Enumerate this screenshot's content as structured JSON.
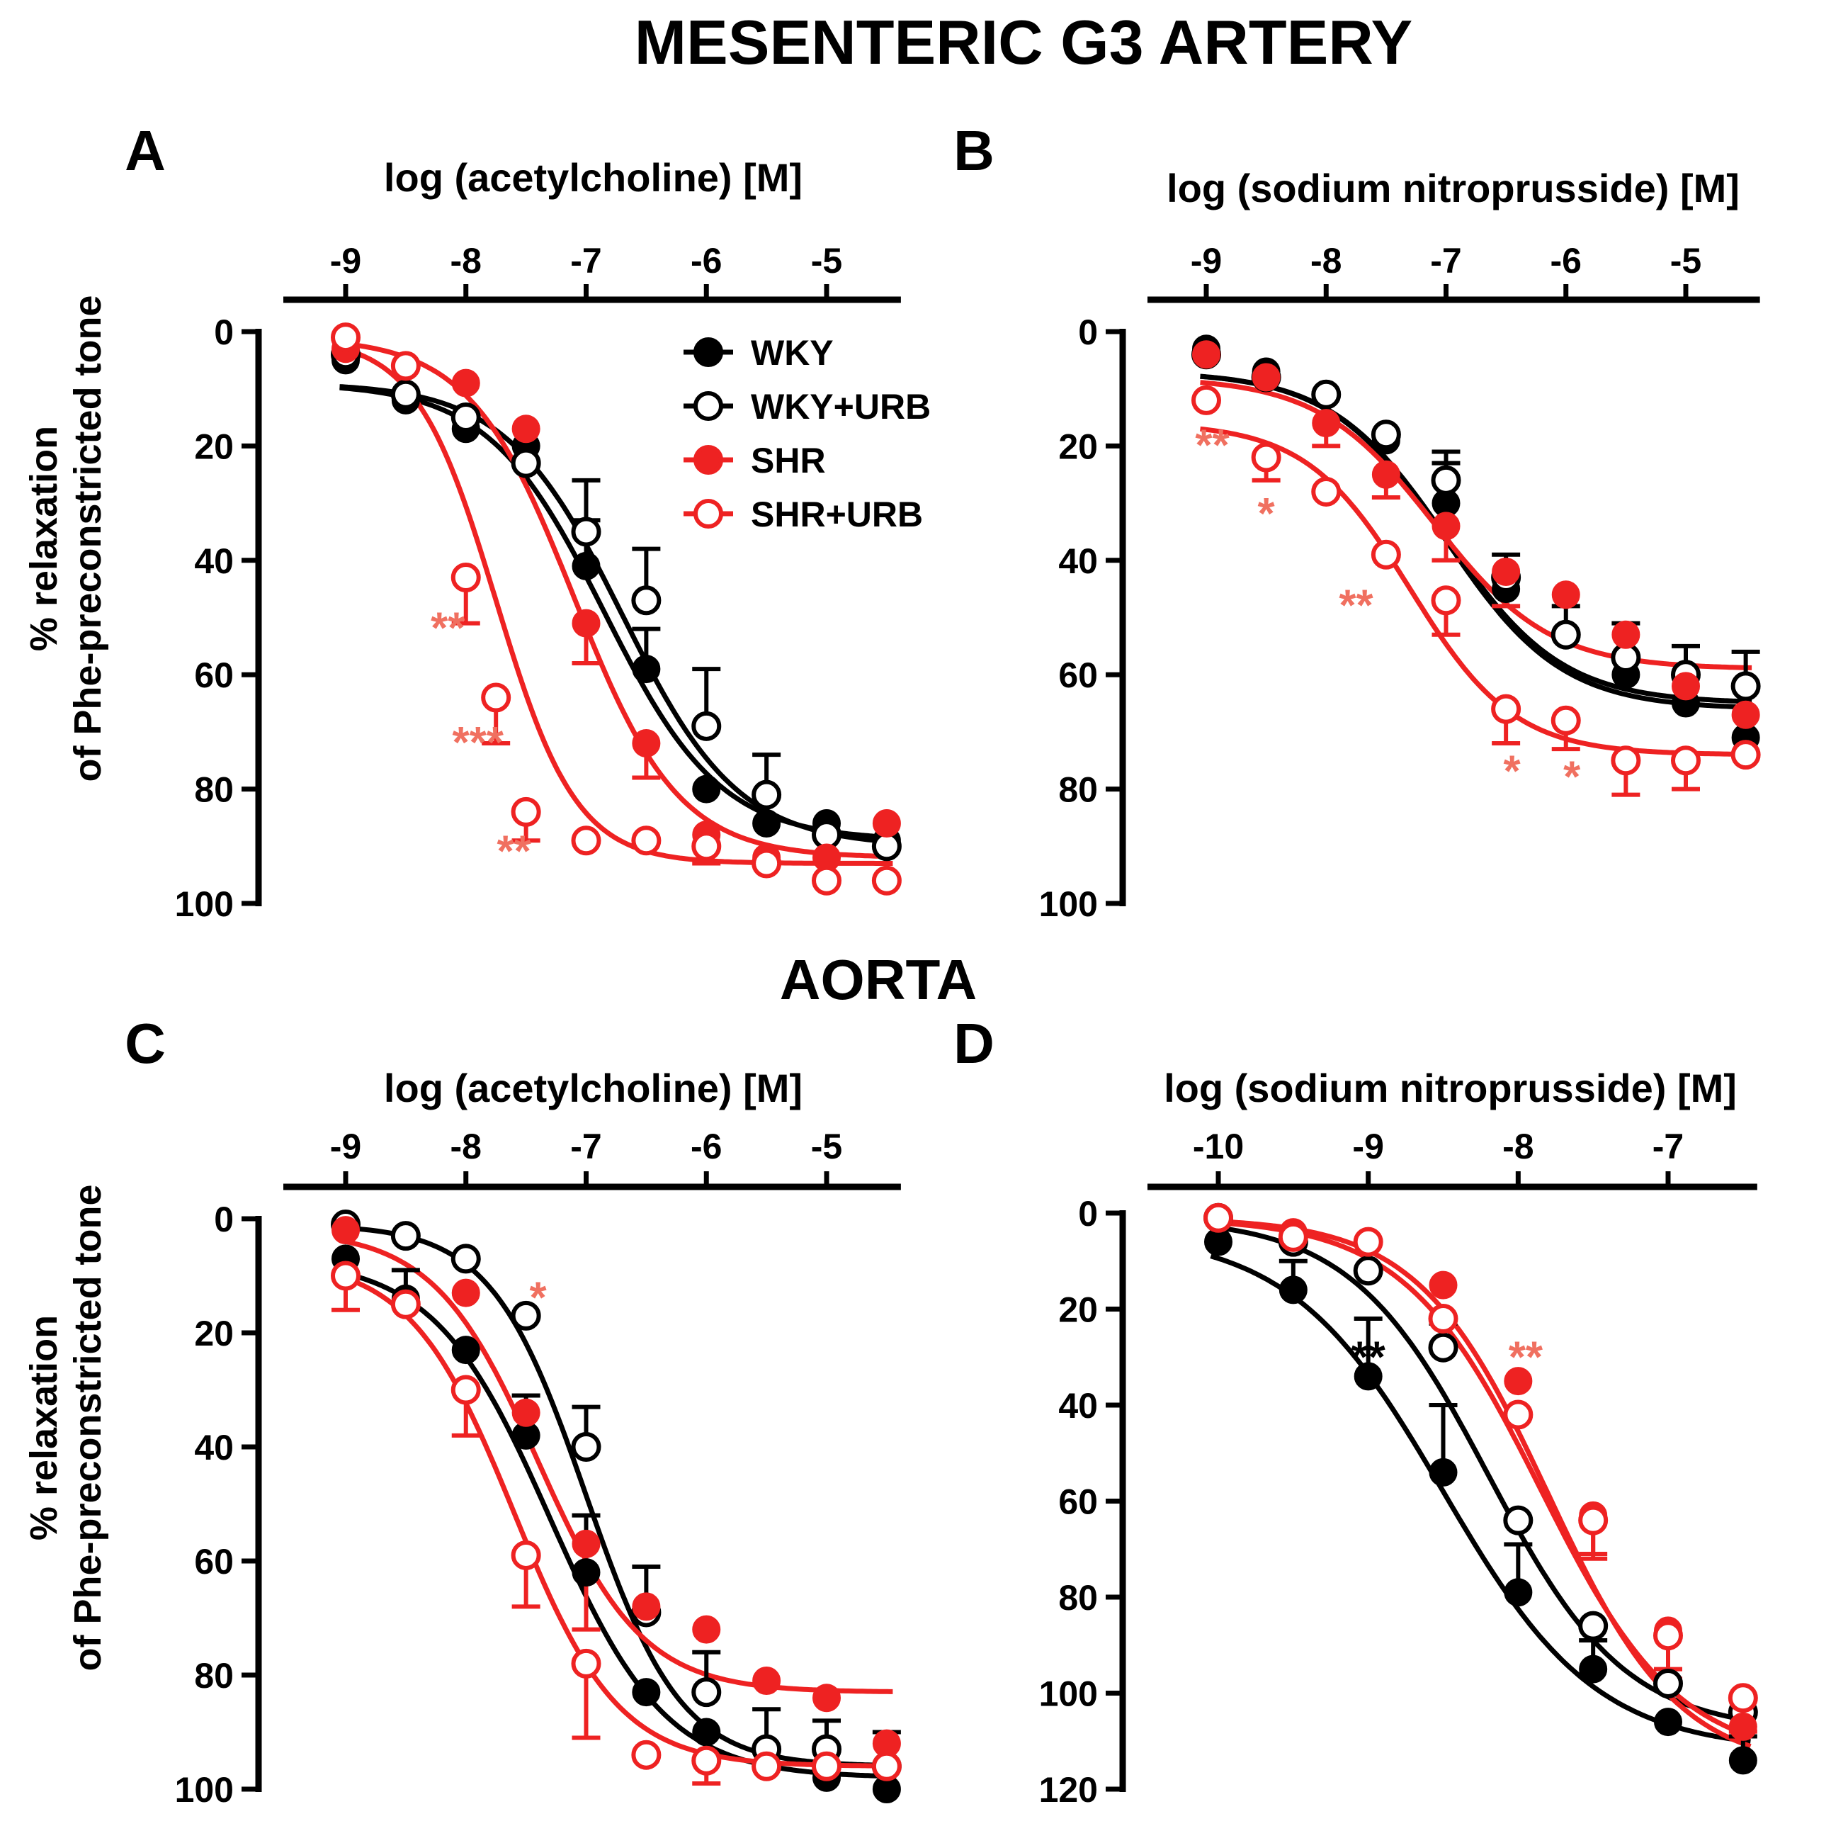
{
  "figure": {
    "title_top": "MESENTERIC G3 ARTERY",
    "title_mid": "AORTA",
    "ylabel_line1": "% relaxation",
    "ylabel_line2": "of Phe-preconstricted tone",
    "legend": [
      {
        "label": "WKY",
        "series": "WKY"
      },
      {
        "label": "WKY+URB",
        "series": "WKY+URB"
      },
      {
        "label": "SHR",
        "series": "SHR"
      },
      {
        "label": "SHR+URB",
        "series": "SHR+URB"
      }
    ]
  },
  "colors": {
    "black": "#000000",
    "red": "#ee2222",
    "star_red": "#f07060"
  },
  "chart_data": [
    {
      "panel": "A",
      "type": "scatter",
      "title": "log (acetylcholine) [M]",
      "xlabel": "log (acetylcholine) [M]",
      "ylabel": "% relaxation of Phe-preconstricted tone",
      "xlim": [
        -9.5,
        -4.5
      ],
      "ylim": [
        0,
        100
      ],
      "y_inverted": true,
      "xticks": [
        -9,
        -8,
        -7,
        -6,
        -5
      ],
      "yticks": [
        0,
        20,
        40,
        60,
        80,
        100
      ],
      "series": [
        {
          "name": "WKY",
          "color": "#000000",
          "filled": true,
          "x": [
            -9,
            -8.5,
            -8,
            -7.5,
            -7,
            -6.5,
            -6,
            -5.5,
            -5,
            -4.5
          ],
          "y": [
            5,
            12,
            17,
            20,
            41,
            59,
            80,
            86,
            86,
            89
          ],
          "err": [
            0,
            0,
            0,
            0,
            8,
            7,
            0,
            0,
            0,
            0
          ],
          "fit": {
            "bottom": 9,
            "top": 89,
            "logec50": -6.85,
            "hill": 0.9
          }
        },
        {
          "name": "WKY+URB",
          "color": "#000000",
          "filled": false,
          "x": [
            -9,
            -8.5,
            -8,
            -7.5,
            -7,
            -6.5,
            -6,
            -5.5,
            -5,
            -4.5
          ],
          "y": [
            4,
            11,
            15,
            23,
            35,
            47,
            69,
            81,
            88,
            90
          ],
          "err": [
            0,
            0,
            0,
            0,
            9,
            9,
            10,
            7,
            0,
            0
          ],
          "fit": {
            "bottom": 9,
            "top": 90,
            "logec50": -6.7,
            "hill": 0.9
          }
        },
        {
          "name": "SHR",
          "color": "#ee2222",
          "filled": true,
          "x": [
            -9,
            -8.5,
            -8,
            -7.5,
            -7,
            -6.5,
            -6,
            -5.5,
            -5,
            -4.5
          ],
          "y": [
            3,
            6,
            9,
            17,
            51,
            72,
            88,
            92,
            92,
            86
          ],
          "err": [
            0,
            0,
            0,
            0,
            7,
            6,
            5,
            0,
            0,
            0
          ],
          "fit": {
            "bottom": 1,
            "top": 92,
            "logec50": -7.1,
            "hill": 1.0
          }
        },
        {
          "name": "SHR+URB",
          "color": "#ee2222",
          "filled": false,
          "x": [
            -9,
            -8.5,
            -8,
            -7.75,
            -7.5,
            -7,
            -6.5,
            -6,
            -5.5,
            -5,
            -4.5
          ],
          "y": [
            1,
            6,
            43,
            64,
            84,
            89,
            89,
            90,
            93,
            96,
            96
          ],
          "err": [
            0,
            0,
            8,
            8,
            5,
            0,
            0,
            0,
            0,
            0,
            0
          ],
          "fit": {
            "bottom": 1,
            "top": 93,
            "logec50": -7.75,
            "hill": 1.3
          }
        }
      ],
      "annotations": [
        {
          "text": "**",
          "x": -8.15,
          "y": 51
        },
        {
          "text": "***",
          "x": -7.9,
          "y": 71
        },
        {
          "text": "**",
          "x": -7.6,
          "y": 90
        }
      ]
    },
    {
      "panel": "B",
      "type": "scatter",
      "title": "log (sodium nitroprusside) [M]",
      "xlabel": "log (sodium nitroprusside) [M]",
      "ylabel": "% relaxation of Phe-preconstricted tone",
      "xlim": [
        -9.5,
        -4.5
      ],
      "ylim": [
        0,
        100
      ],
      "y_inverted": true,
      "xticks": [
        -9,
        -8,
        -7,
        -6,
        -5
      ],
      "yticks": [
        0,
        20,
        40,
        60,
        80,
        100
      ],
      "series": [
        {
          "name": "WKY",
          "color": "#000000",
          "filled": true,
          "x": [
            -9,
            -8.5,
            -8,
            -7.5,
            -7,
            -6.5,
            -6,
            -5.5,
            -5,
            -4.5
          ],
          "y": [
            3,
            7,
            11,
            19,
            30,
            45,
            53,
            60,
            65,
            71
          ],
          "err": [
            0,
            0,
            0,
            0,
            7,
            0,
            0,
            0,
            0,
            0
          ],
          "fit": {
            "bottom": 7,
            "top": 66,
            "logec50": -7.0,
            "hill": 0.9
          }
        },
        {
          "name": "WKY+URB",
          "color": "#000000",
          "filled": false,
          "x": [
            -9,
            -8.5,
            -8,
            -7.5,
            -7,
            -6.5,
            -6,
            -5.5,
            -5,
            -4.5
          ],
          "y": [
            4,
            8,
            11,
            18,
            26,
            43,
            53,
            57,
            60,
            62
          ],
          "err": [
            0,
            0,
            0,
            0,
            5,
            4,
            5,
            6,
            5,
            6
          ],
          "fit": {
            "bottom": 7,
            "top": 65,
            "logec50": -7.0,
            "hill": 0.9
          }
        },
        {
          "name": "SHR",
          "color": "#ee2222",
          "filled": true,
          "x": [
            -9,
            -8.5,
            -8,
            -7.5,
            -7,
            -6.5,
            -6,
            -5.5,
            -5,
            -4.5
          ],
          "y": [
            4,
            8,
            16,
            25,
            34,
            42,
            46,
            53,
            62,
            67
          ],
          "err": [
            0,
            0,
            4,
            4,
            6,
            6,
            0,
            0,
            0,
            0
          ],
          "fit": {
            "bottom": 8,
            "top": 59,
            "logec50": -7.1,
            "hill": 0.9
          }
        },
        {
          "name": "SHR+URB",
          "color": "#ee2222",
          "filled": false,
          "x": [
            -9,
            -8.5,
            -8,
            -7.5,
            -7,
            -6.5,
            -6,
            -5.5,
            -5,
            -4.5
          ],
          "y": [
            12,
            22,
            28,
            39,
            47,
            66,
            68,
            75,
            75,
            74
          ],
          "err": [
            0,
            4,
            0,
            0,
            6,
            6,
            5,
            6,
            5,
            0
          ],
          "fit": {
            "bottom": 16,
            "top": 74,
            "logec50": -7.3,
            "hill": 1.0
          }
        }
      ],
      "annotations": [
        {
          "text": "**",
          "x": -8.95,
          "y": 19
        },
        {
          "text": "*",
          "x": -8.5,
          "y": 31
        },
        {
          "text": "**",
          "x": -7.75,
          "y": 47
        },
        {
          "text": "*",
          "x": -6.45,
          "y": 76
        },
        {
          "text": "*",
          "x": -5.95,
          "y": 77
        }
      ]
    },
    {
      "panel": "C",
      "type": "scatter",
      "title": "log (acetylcholine) [M]",
      "xlabel": "log (acetylcholine) [M]",
      "ylabel": "% relaxation of Phe-preconstricted tone",
      "xlim": [
        -9.5,
        -4.5
      ],
      "ylim": [
        0,
        100
      ],
      "y_inverted": true,
      "xticks": [
        -9,
        -8,
        -7,
        -6,
        -5
      ],
      "yticks": [
        0,
        20,
        40,
        60,
        80,
        100
      ],
      "series": [
        {
          "name": "WKY",
          "color": "#000000",
          "filled": true,
          "x": [
            -9,
            -8.5,
            -8,
            -7.5,
            -7,
            -6.5,
            -6,
            -5.5,
            -5,
            -4.5
          ],
          "y": [
            7,
            14,
            23,
            38,
            62,
            83,
            90,
            96,
            98,
            100
          ],
          "err": [
            0,
            5,
            0,
            7,
            10,
            0,
            0,
            0,
            0,
            0
          ],
          "fit": {
            "bottom": 7,
            "top": 98,
            "logec50": -7.3,
            "hill": 0.9
          }
        },
        {
          "name": "WKY+URB",
          "color": "#000000",
          "filled": false,
          "x": [
            -9,
            -8.5,
            -8,
            -7.5,
            -7,
            -6.5,
            -6,
            -5.5,
            -5,
            -4.5
          ],
          "y": [
            1,
            3,
            7,
            17,
            40,
            69,
            83,
            93,
            93,
            96
          ],
          "err": [
            0,
            0,
            0,
            0,
            7,
            8,
            7,
            7,
            5,
            6
          ],
          "fit": {
            "bottom": 1,
            "top": 96,
            "logec50": -7.0,
            "hill": 1.1
          }
        },
        {
          "name": "SHR",
          "color": "#ee2222",
          "filled": true,
          "x": [
            -9,
            -8.5,
            -8,
            -7.5,
            -7,
            -6.5,
            -6,
            -5.5,
            -5,
            -4.5
          ],
          "y": [
            2,
            15,
            13,
            34,
            57,
            68,
            72,
            81,
            84,
            92
          ],
          "err": [
            0,
            0,
            0,
            0,
            15,
            0,
            0,
            0,
            0,
            0
          ],
          "fit": {
            "bottom": 2,
            "top": 83,
            "logec50": -7.4,
            "hill": 1.0
          }
        },
        {
          "name": "SHR+URB",
          "color": "#ee2222",
          "filled": false,
          "x": [
            -9,
            -8.5,
            -8,
            -7.5,
            -7,
            -6.5,
            -6,
            -5.5,
            -5,
            -4.5
          ],
          "y": [
            10,
            15,
            30,
            59,
            78,
            94,
            95,
            96,
            96,
            96
          ],
          "err": [
            6,
            0,
            8,
            9,
            13,
            0,
            4,
            0,
            0,
            0
          ],
          "fit": {
            "bottom": 7,
            "top": 96,
            "logec50": -7.6,
            "hill": 1.0
          }
        }
      ],
      "annotations": [
        {
          "text": "*",
          "x": -7.4,
          "y": 13
        }
      ]
    },
    {
      "panel": "D",
      "type": "scatter",
      "title": "log (sodium nitroprusside) [M]",
      "xlabel": "log (sodium nitroprusside) [M]",
      "ylabel": "% relaxation of Phe-preconstricted tone",
      "xlim": [
        -10.5,
        -6.5
      ],
      "ylim": [
        0,
        120
      ],
      "y_inverted": true,
      "xticks": [
        -10,
        -9,
        -8,
        -7
      ],
      "yticks": [
        0,
        20,
        40,
        60,
        80,
        100,
        120
      ],
      "series": [
        {
          "name": "WKY",
          "color": "#000000",
          "filled": true,
          "x": [
            -10,
            -9.5,
            -9,
            -8.5,
            -8,
            -7.5,
            -7,
            -6.5
          ],
          "y": [
            6,
            16,
            34,
            54,
            79,
            95,
            106,
            114
          ],
          "err": [
            0,
            6,
            12,
            14,
            10,
            6,
            0,
            5
          ],
          "fit": {
            "bottom": 4,
            "top": 112,
            "logec50": -8.5,
            "hill": 0.85
          }
        },
        {
          "name": "WKY+URB",
          "color": "#000000",
          "filled": false,
          "x": [
            -10,
            -9.5,
            -9,
            -8.5,
            -8,
            -7.5,
            -7,
            -6.5
          ],
          "y": [
            1,
            6,
            12,
            28,
            64,
            86,
            98,
            104
          ],
          "err": [
            0,
            0,
            0,
            5,
            0,
            0,
            0,
            0
          ],
          "fit": {
            "bottom": 1,
            "top": 108,
            "logec50": -8.2,
            "hill": 0.95
          }
        },
        {
          "name": "SHR",
          "color": "#ee2222",
          "filled": true,
          "x": [
            -10,
            -9.5,
            -9,
            -8.5,
            -8,
            -7.5,
            -7,
            -6.5
          ],
          "y": [
            1,
            4,
            6,
            15,
            35,
            63,
            87,
            107
          ],
          "err": [
            0,
            0,
            0,
            0,
            0,
            8,
            8,
            0
          ],
          "fit": {
            "bottom": 1,
            "top": 116,
            "logec50": -7.8,
            "hill": 1.0
          }
        },
        {
          "name": "SHR+URB",
          "color": "#ee2222",
          "filled": false,
          "x": [
            -10,
            -9.5,
            -9,
            -8.5,
            -8,
            -7.5,
            -7,
            -6.5
          ],
          "y": [
            1,
            5,
            6,
            22,
            42,
            64,
            88,
            101
          ],
          "err": [
            0,
            0,
            0,
            0,
            0,
            8,
            9,
            7
          ],
          "fit": {
            "bottom": 1,
            "top": 114,
            "logec50": -7.85,
            "hill": 0.95
          }
        }
      ],
      "annotations": [
        {
          "text": "**",
          "x": -9.0,
          "y": 29,
          "color": "#000000"
        },
        {
          "text": "**",
          "x": -7.95,
          "y": 29
        }
      ]
    }
  ]
}
